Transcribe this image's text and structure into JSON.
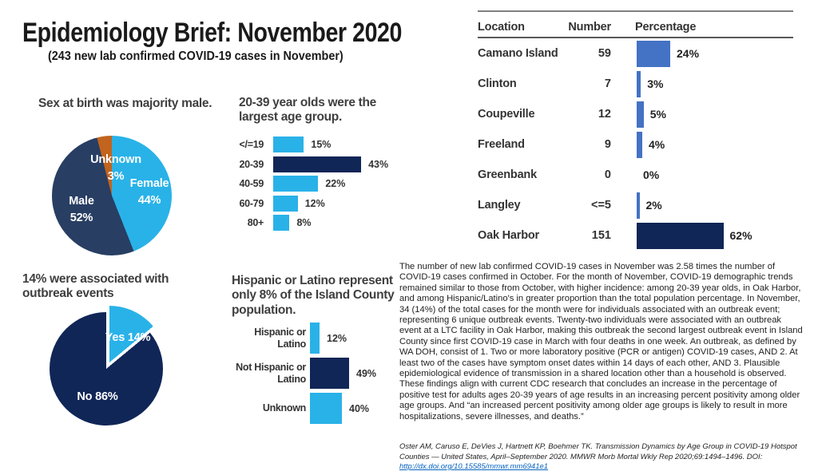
{
  "header": {
    "title": "Epidemiology Brief: November 2020",
    "subtitle": "(243 new lab confirmed COVID-19 cases in November)"
  },
  "colors": {
    "light_blue": "#29B2E8",
    "slate_navy": "#283E63",
    "dark_navy": "#102657",
    "orange": "#C2641D",
    "table_blue": "#4472C4",
    "link_blue": "#0563C1"
  },
  "chart_data": [
    {
      "id": "sex_pie",
      "type": "pie",
      "title": "Sex at birth was majority male.",
      "slices": [
        {
          "label": "Female",
          "value": 44,
          "display": "44%",
          "color_key": "light_blue"
        },
        {
          "label": "Male",
          "value": 52,
          "display": "52%",
          "color_key": "slate_navy"
        },
        {
          "label": "Unknown",
          "value": 3,
          "display": "3%",
          "color_key": "orange"
        }
      ]
    },
    {
      "id": "age_group_bar",
      "type": "bar",
      "title": "20-39 year olds were the largest age group.",
      "categories": [
        "</=19",
        "20-39",
        "40-59",
        "60-79",
        "80+"
      ],
      "values": [
        15,
        43,
        22,
        12,
        8
      ],
      "labels": [
        "15%",
        "43%",
        "22%",
        "12%",
        "8%"
      ],
      "highlight_index": 1,
      "xlim": [
        0,
        50
      ]
    },
    {
      "id": "outbreak_pie",
      "type": "pie",
      "title": "14% were associated with outbreak events",
      "slices": [
        {
          "label": "Yes 14%",
          "value": 14,
          "color_key": "light_blue"
        },
        {
          "label": "No 86%",
          "value": 86,
          "color_key": "dark_navy"
        }
      ],
      "exploded_slice": 0
    },
    {
      "id": "ethnicity_bar",
      "type": "bar",
      "title": "Hispanic or Latino represent only 8% of the Island County population.",
      "categories": [
        "Hispanic or Latino",
        "Not Hispanic or Latino",
        "Unknown"
      ],
      "values": [
        12,
        49,
        40
      ],
      "labels": [
        "12%",
        "49%",
        "40%"
      ],
      "highlight_index": 1,
      "xlim": [
        0,
        55
      ]
    },
    {
      "id": "location_table",
      "type": "table",
      "columns": [
        "Location",
        "Number",
        "Percentage"
      ],
      "rows": [
        {
          "location": "Camano Island",
          "number": "59",
          "pct": 24,
          "pct_label": "24%",
          "highlight": false
        },
        {
          "location": "Clinton",
          "number": "7",
          "pct": 3,
          "pct_label": "3%",
          "highlight": false
        },
        {
          "location": "Coupeville",
          "number": "12",
          "pct": 5,
          "pct_label": "5%",
          "highlight": false
        },
        {
          "location": "Freeland",
          "number": "9",
          "pct": 4,
          "pct_label": "4%",
          "highlight": false
        },
        {
          "location": "Greenbank",
          "number": "0",
          "pct": 0,
          "pct_label": "0%",
          "highlight": false
        },
        {
          "location": "Langley",
          "number": "<=5",
          "pct": 2,
          "pct_label": "2%",
          "highlight": false
        },
        {
          "location": "Oak Harbor",
          "number": "151",
          "pct": 62,
          "pct_label": "62%",
          "highlight": true
        }
      ]
    }
  ],
  "narrative": {
    "body": "The number of new lab confirmed COVID-19 cases in November was 2.58 times the number of COVID-19 cases confirmed in October. For the month of November, COVID-19 demographic trends remained similar to those from October, with higher incidence: among 20-39 year olds, in Oak Harbor, and among Hispanic/Latino's in greater proportion than the total population percentage.  In November, 34 (14%) of the total cases for the month were for individuals associated with an outbreak event; representing 6 unique outbreak events. Twenty-two individuals were associated with an outbreak event at a LTC facility in Oak Harbor, making this outbreak the second largest outbreak event in Island County since first COVID-19 case in March with four deaths in one week. An outbreak, as defined by WA DOH, consist of 1. Two or more laboratory positive (PCR or antigen) COVID-19 cases, AND 2. At least two of the cases have symptom onset dates within 14 days of each other, AND 3. Plausible epidemiological evidence of transmission in a shared location other than a household is observed. These findings align with current CDC research that concludes an increase in the percentage of positive test for adults ages 20-39 years of age results in an increasing percent positivity among older age groups. And “an increased percent positivity among older age groups is likely to result in more hospitalizations, severe illnesses, and deaths.”",
    "citation_text": "Oster AM, Caruso E, DeVies J, Hartnett KP, Boehmer TK. Transmission Dynamics by Age Group in COVID-19 Hotspot Counties — United States, April–September 2020. MMWR Morb Mortal Wkly Rep 2020;69:1494–1496. DOI: ",
    "citation_link": "http://dx.doi.org/10.15585/mmwr.mm6941e1"
  }
}
